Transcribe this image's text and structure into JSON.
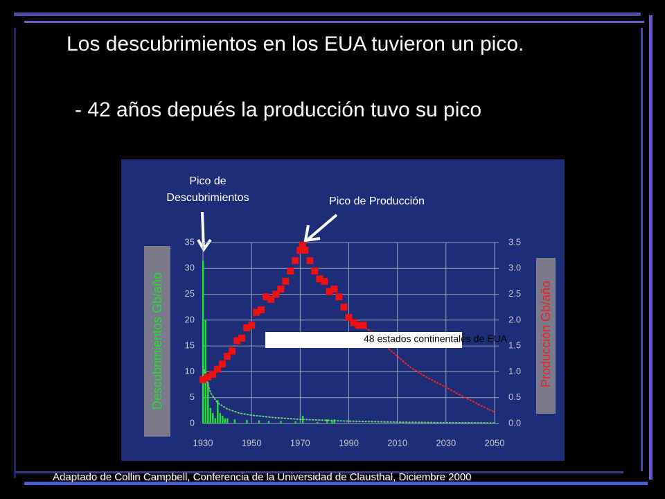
{
  "slide": {
    "title": "Los descubrimientos en los EUA tuvieron un pico.",
    "subtitle": "- 42 años depués la producción tuvo su pico",
    "source": "Adaptado de Collin Campbell, Conferencia de la Universidad de Clausthal, Diciembre 2000"
  },
  "chart_data": {
    "type": "combo",
    "annotations": {
      "discovery_peak": [
        "Pico de",
        "Descubrimientos"
      ],
      "production_peak": "Pico de Producción",
      "region": "48 estados continentales de EUA"
    },
    "ylabel": "Descubrimientos Gb/año",
    "y2label": "Producción Gb/año",
    "xlim": [
      1930,
      2050
    ],
    "xticks": [
      1930,
      1950,
      1970,
      1990,
      2010,
      2030,
      2050
    ],
    "ylim": [
      0,
      35
    ],
    "yticks": [
      0,
      5,
      10,
      15,
      20,
      25,
      30,
      35
    ],
    "y2lim": [
      0,
      3.5
    ],
    "y2ticks": [
      {
        "value": 0,
        "label": "0.0"
      },
      0.5,
      {
        "value": 1,
        "label": "1.0"
      },
      1.5,
      {
        "value": 2,
        "label": "2.0"
      },
      2.5,
      {
        "value": 3,
        "label": "3.0"
      },
      3.5
    ],
    "grid": true,
    "series": [
      {
        "type": "bar",
        "color": "#22dd33",
        "axis": "y",
        "x": [
          1930,
          1931,
          1932,
          1933,
          1934,
          1935,
          1936,
          1937,
          1938,
          1939,
          1940,
          1943,
          1948,
          1953,
          1957,
          1962,
          1968,
          1971,
          1977,
          1981,
          1983,
          1984
        ],
        "values": [
          31.5,
          20,
          8,
          3,
          2,
          1,
          4.5,
          2,
          1.5,
          1,
          1,
          0.8,
          0.7,
          0.6,
          0.5,
          0.5,
          0.4,
          1.5,
          0.3,
          0.8,
          0.6,
          0.8
        ]
      },
      {
        "type": "line",
        "style": "dotted",
        "color": "#66cc77",
        "axis": "y",
        "x": [
          1930,
          1933,
          1936,
          1940,
          1945,
          1950,
          1960,
          1970,
          1990,
          2010,
          2030,
          2050
        ],
        "values": [
          11,
          6,
          4,
          2.8,
          2,
          1.6,
          1.1,
          0.8,
          0.45,
          0.25,
          0.15,
          0.1
        ]
      },
      {
        "type": "scatter",
        "color": "#ee1111",
        "axis": "y2",
        "x": [
          1930,
          1932,
          1934,
          1936,
          1938,
          1940,
          1942,
          1944,
          1946,
          1948,
          1950,
          1952,
          1954,
          1956,
          1958,
          1960,
          1962,
          1964,
          1966,
          1968,
          1970,
          1971,
          1972,
          1974,
          1976,
          1978,
          1980,
          1982,
          1984,
          1986,
          1988,
          1990,
          1992,
          1994,
          1996
        ],
        "values": [
          0.85,
          0.9,
          0.95,
          1.05,
          1.15,
          1.3,
          1.4,
          1.6,
          1.65,
          1.85,
          1.9,
          2.15,
          2.2,
          2.45,
          2.4,
          2.5,
          2.6,
          2.75,
          2.95,
          3.15,
          3.35,
          3.45,
          3.35,
          3.15,
          2.95,
          2.8,
          2.75,
          2.55,
          2.6,
          2.45,
          2.25,
          2.05,
          1.95,
          1.9,
          1.9
        ]
      },
      {
        "type": "line",
        "style": "dotted",
        "color": "#ee2222",
        "axis": "y2",
        "x": [
          1997,
          2000,
          2005,
          2010,
          2015,
          2020,
          2025,
          2030,
          2035,
          2040,
          2045,
          2050
        ],
        "values": [
          1.85,
          1.75,
          1.5,
          1.3,
          1.1,
          0.95,
          0.82,
          0.7,
          0.57,
          0.45,
          0.33,
          0.22
        ]
      }
    ]
  }
}
